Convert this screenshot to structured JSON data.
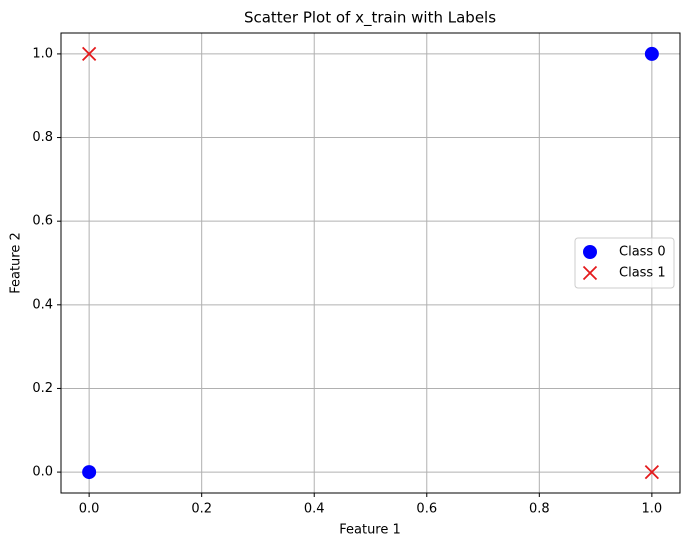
{
  "chart_data": {
    "type": "scatter",
    "title": "Scatter Plot of x_train with Labels",
    "x_label": "Feature 1",
    "y_label": "Feature 2",
    "series": [
      {
        "name": "Class 0",
        "color": "#0000ff",
        "marker": "o",
        "x": [
          0,
          1
        ],
        "y": [
          0,
          1
        ]
      },
      {
        "name": "Class 1",
        "color": "#e41a1c",
        "marker": "x",
        "x": [
          0,
          1
        ],
        "y": [
          1,
          0
        ]
      }
    ],
    "xlim": [
      -0.05,
      1.05
    ],
    "ylim": [
      -0.05,
      1.05
    ],
    "xticks": [
      {
        "value": 0,
        "label": "0.0"
      },
      0.2,
      0.4,
      0.6,
      0.8,
      {
        "value": 1,
        "label": "1.0"
      }
    ],
    "yticks": [
      {
        "value": 0,
        "label": "0.0"
      },
      0.2,
      0.4,
      0.6,
      0.8,
      {
        "value": 1,
        "label": "1.0"
      }
    ],
    "grid": true,
    "legend": "center right"
  }
}
